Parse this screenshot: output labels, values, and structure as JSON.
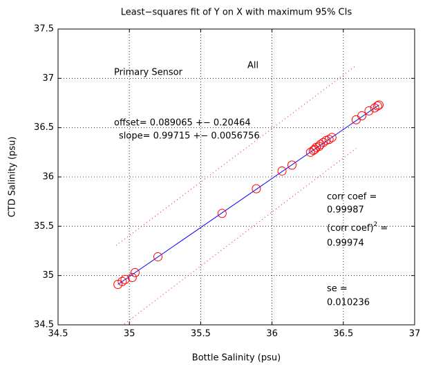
{
  "chart_data": {
    "type": "scatter",
    "title": "Least−squares fit of Y on X with maximum 95% CIs",
    "x_label": "Bottle Salinity (psu)",
    "y_label": "CTD Salinity (psu)",
    "x": [
      34.92,
      34.95,
      34.97,
      35.02,
      35.04,
      35.2,
      35.65,
      35.89,
      36.07,
      36.14,
      36.27,
      36.29,
      36.3,
      36.31,
      36.33,
      36.34,
      36.36,
      36.38,
      36.4,
      36.42,
      36.59,
      36.63,
      36.68,
      36.72,
      36.74,
      36.75
    ],
    "values": [
      34.91,
      34.94,
      34.96,
      34.98,
      35.03,
      35.19,
      35.63,
      35.88,
      36.06,
      36.12,
      36.25,
      36.27,
      36.28,
      36.3,
      36.31,
      36.33,
      36.35,
      36.37,
      36.38,
      36.4,
      36.58,
      36.62,
      36.67,
      36.7,
      36.72,
      36.73
    ],
    "color": "#ff0000",
    "lines": [
      {
        "color": "#0000ff",
        "style": "solid",
        "x": [
          34.92,
          36.75
        ],
        "values": [
          34.91,
          36.73
        ]
      },
      {
        "color": "#ff0000",
        "style": "dotted",
        "x": [
          34.907,
          36.59
        ],
        "values": [
          35.305,
          37.13
        ]
      },
      {
        "color": "#ff0000",
        "style": "dotted",
        "x": [
          34.965,
          36.59
        ],
        "values": [
          34.51,
          36.29
        ]
      }
    ],
    "annotations": [
      "Primary Sensor",
      "All",
      "offset= 0.089065  +−  0.20464",
      "slope= 0.99715  +−  0.0056756",
      "corr coef =",
      "0.99987",
      "(corr coef)",
      "2",
      " =",
      "0.99974",
      "se =",
      "0.010236"
    ],
    "xlim": [
      34.5,
      37
    ],
    "xticks": [
      34.5,
      35,
      35.5,
      36,
      36.5,
      37
    ],
    "ylim": [
      34.5,
      37.5
    ],
    "yticks": [
      34.5,
      35,
      35.5,
      36,
      36.5,
      37,
      37.5
    ],
    "grid": true
  }
}
